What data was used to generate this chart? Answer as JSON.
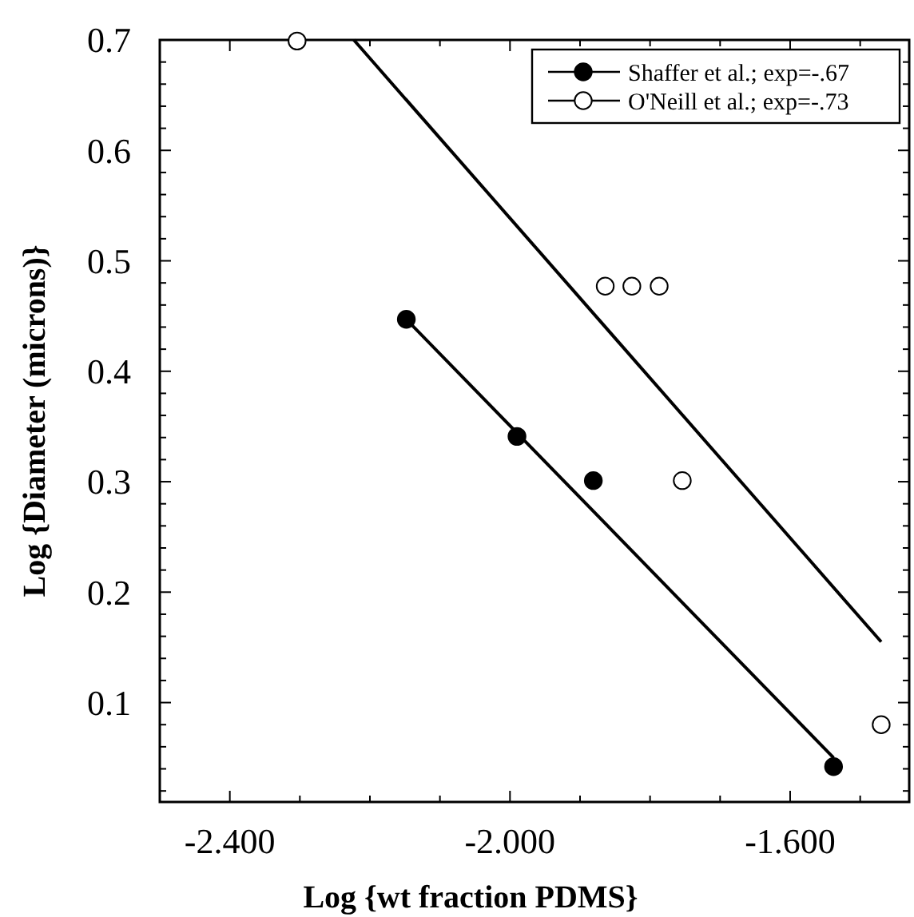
{
  "chart_data": {
    "type": "scatter",
    "xlabel": "Log {wt fraction PDMS}",
    "ylabel": "Log {Diameter (microns)}",
    "xlim": [
      -2.5,
      -1.43
    ],
    "ylim": [
      0.01,
      0.7
    ],
    "xticks": [
      {
        "value": -2.4,
        "label": "-2.400"
      },
      {
        "value": -2.3,
        "label": null
      },
      {
        "value": -2.2,
        "label": null
      },
      {
        "value": -2.1,
        "label": null
      },
      {
        "value": -2.0,
        "label": "-2.000"
      },
      {
        "value": -1.9,
        "label": null
      },
      {
        "value": -1.8,
        "label": null
      },
      {
        "value": -1.7,
        "label": null
      },
      {
        "value": -1.6,
        "label": "-1.600"
      },
      {
        "value": -1.5,
        "label": null
      }
    ],
    "yticks": [
      {
        "value": 0.02,
        "label": null
      },
      {
        "value": 0.04,
        "label": null
      },
      {
        "value": 0.06,
        "label": null
      },
      {
        "value": 0.08,
        "label": null
      },
      0.1,
      {
        "value": 0.12,
        "label": null
      },
      {
        "value": 0.14,
        "label": null
      },
      {
        "value": 0.16,
        "label": null
      },
      {
        "value": 0.18,
        "label": null
      },
      0.2,
      {
        "value": 0.22,
        "label": null
      },
      {
        "value": 0.24,
        "label": null
      },
      {
        "value": 0.26,
        "label": null
      },
      {
        "value": 0.28,
        "label": null
      },
      0.3,
      {
        "value": 0.32,
        "label": null
      },
      {
        "value": 0.34,
        "label": null
      },
      {
        "value": 0.36,
        "label": null
      },
      {
        "value": 0.38,
        "label": null
      },
      0.4,
      {
        "value": 0.42,
        "label": null
      },
      {
        "value": 0.44,
        "label": null
      },
      {
        "value": 0.46,
        "label": null
      },
      {
        "value": 0.48,
        "label": null
      },
      0.5,
      {
        "value": 0.52,
        "label": null
      },
      {
        "value": 0.54,
        "label": null
      },
      {
        "value": 0.56,
        "label": null
      },
      {
        "value": 0.58,
        "label": null
      },
      0.6,
      {
        "value": 0.62,
        "label": null
      },
      {
        "value": 0.64,
        "label": null
      },
      {
        "value": 0.66,
        "label": null
      },
      {
        "value": 0.68,
        "label": null
      },
      0.7
    ],
    "legend": "top right",
    "grid": false,
    "marker": "circle",
    "series": [
      {
        "name": "Shaffer et al.; exp=-.67",
        "color": "#000000",
        "x": [
          -2.148,
          -1.99,
          -1.881,
          -1.538
        ],
        "values": [
          0.447,
          0.341,
          0.301,
          0.042
        ]
      },
      {
        "name": "O'Neill et al.; exp=-.73",
        "color": "#ffffff",
        "x": [
          -2.304,
          -1.864,
          -1.826,
          -1.787,
          -1.754,
          -1.47
        ],
        "values": [
          0.699,
          0.477,
          0.477,
          0.477,
          0.301,
          0.08
        ]
      },
      {
        "type": "line",
        "color": "#000000",
        "marker": "none",
        "x": [
          -2.148,
          -1.538
        ],
        "values": [
          0.447,
          0.05
        ]
      },
      {
        "type": "line",
        "color": "#000000",
        "marker": "none",
        "x": [
          -2.223,
          -1.47
        ],
        "values": [
          0.7,
          0.155
        ]
      }
    ]
  }
}
